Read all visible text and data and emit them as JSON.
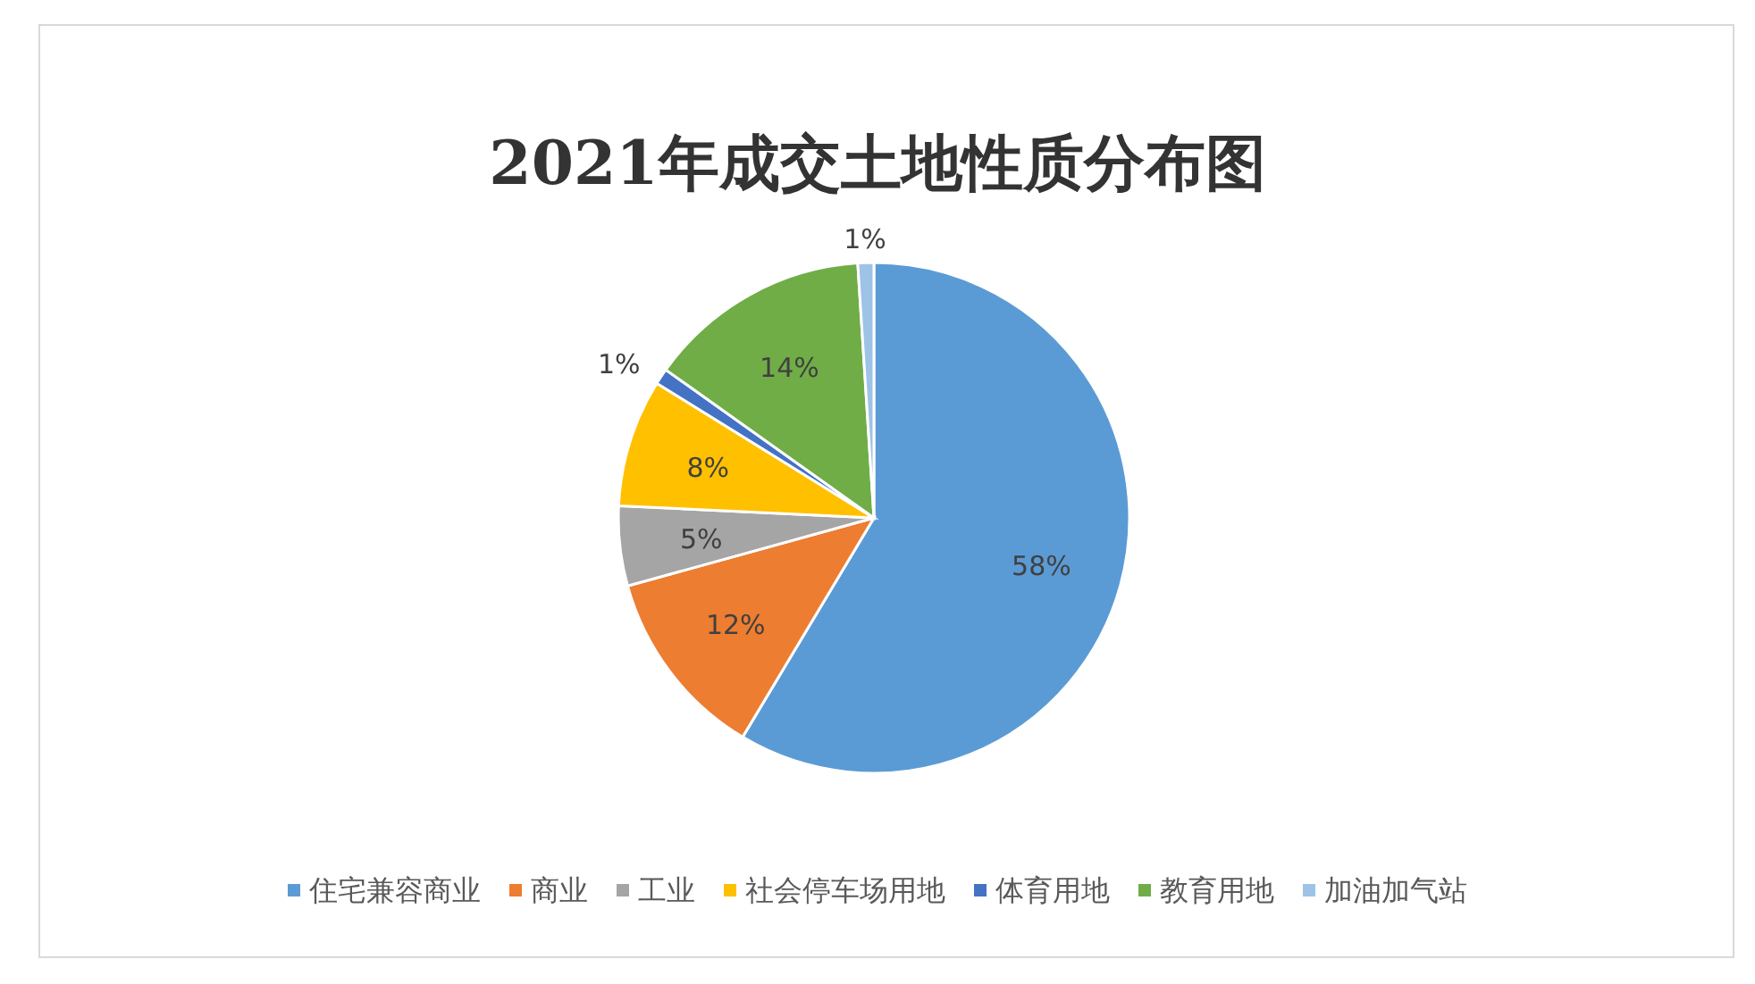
{
  "chart_data": {
    "type": "pie",
    "title": "2021年成交土地性质分布图",
    "categories": [
      "住宅兼容商业",
      "商业",
      "工业",
      "社会停车场用地",
      "体育用地",
      "教育用地",
      "加油加气站"
    ],
    "values": [
      58,
      12,
      5,
      8,
      1,
      14,
      1
    ],
    "value_labels": [
      "58%",
      "12%",
      "5%",
      "8%",
      "1%",
      "14%",
      "1%"
    ],
    "colors": [
      "#5b9bd5",
      "#ed7d31",
      "#a5a5a5",
      "#ffc000",
      "#4472c4",
      "#70ad47",
      "#9dc3e6"
    ],
    "legend": "bottom"
  }
}
